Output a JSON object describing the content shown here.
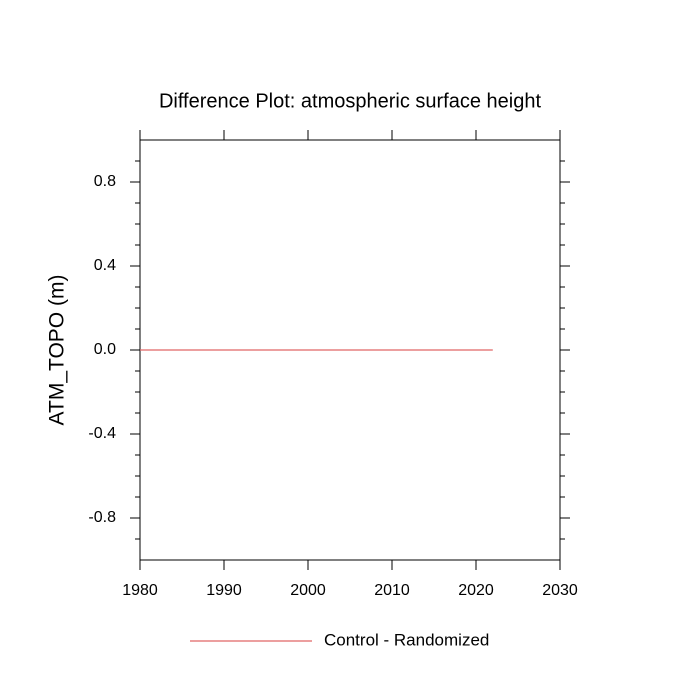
{
  "chart_data": {
    "type": "line",
    "title": "Difference Plot: atmospheric surface height",
    "y_label": "ATM_TOPO  (m)",
    "x": [
      1980,
      2022
    ],
    "series": [
      {
        "name": "Control - Randomized",
        "color": "#e06666",
        "values": [
          0,
          0
        ]
      }
    ],
    "xlim": [
      1980,
      2030
    ],
    "xticks": [
      1980,
      1990,
      2000,
      2010,
      2020,
      2030
    ],
    "ylim": [
      -1,
      1
    ],
    "yticks": [
      -0.8,
      -0.4,
      {
        "value": 0,
        "label": "0.0"
      },
      0.4,
      0.8
    ],
    "yminorticks": [
      -0.9,
      -0.7,
      -0.6,
      -0.5,
      -0.3,
      -0.2,
      -0.1,
      0.1,
      0.2,
      0.3,
      0.5,
      0.6,
      0.7,
      0.9
    ],
    "legend": "bottom"
  }
}
